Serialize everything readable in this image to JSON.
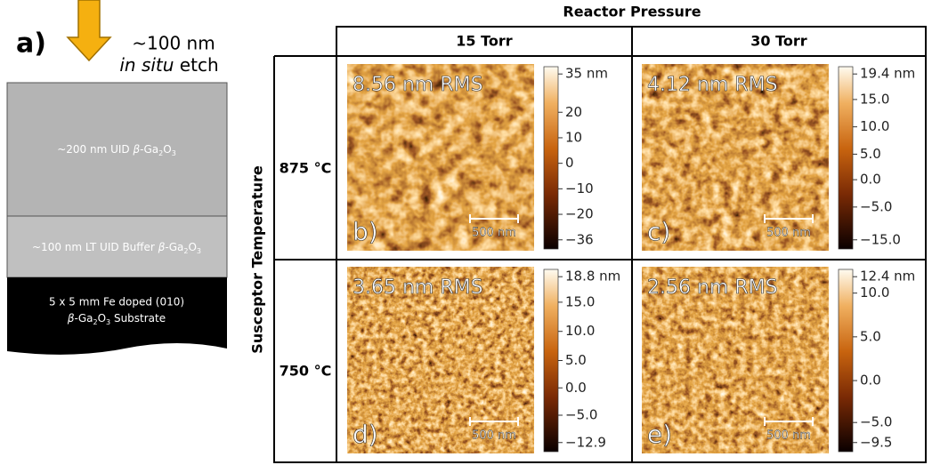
{
  "panel_a": {
    "label": "a)",
    "etch_amount": "~100 nm",
    "etch_italic": "in situ",
    "etch_rest": " etch",
    "layers": [
      {
        "parts": [
          "~200 nm UID ",
          "β",
          "-Ga",
          "2",
          "O",
          "3"
        ]
      },
      {
        "parts": [
          "~100 nm LT UID Buffer ",
          "β",
          "-Ga",
          "2",
          "O",
          "3"
        ]
      }
    ],
    "substrate_line1": "5 x 5 mm Fe doped (010)",
    "substrate_line2": [
      "β",
      "-Ga",
      "2",
      "O",
      "3",
      " Substrate"
    ]
  },
  "grid": {
    "column_header": "Reactor Pressure",
    "columns": [
      "15 Torr",
      "30 Torr"
    ],
    "row_header": "Susceptor Temperature",
    "rows": [
      "875 °C",
      "750 °C"
    ],
    "panels": [
      {
        "label": "b)",
        "rms": "8.56 nm RMS",
        "scale_bar": "500 nm",
        "colorbar": [
          "35 nm",
          "20",
          "10",
          "0",
          "−10",
          "−20",
          "−36"
        ]
      },
      {
        "label": "c)",
        "rms": "4.12 nm RMS",
        "scale_bar": "500 nm",
        "colorbar": [
          "19.4 nm",
          "15.0",
          "10.0",
          "5.0",
          "0.0",
          "−5.0",
          "−15.0"
        ]
      },
      {
        "label": "d)",
        "rms": "3.65 nm RMS",
        "scale_bar": "500 nm",
        "colorbar": [
          "18.8 nm",
          "15.0",
          "10.0",
          "5.0",
          "0.0",
          "−5.0",
          "−12.9"
        ]
      },
      {
        "label": "e)",
        "rms": "2.56 nm RMS",
        "scale_bar": "500 nm",
        "colorbar": [
          "12.4 nm",
          "10.0",
          "5.0",
          "0.0",
          "−5.0",
          "−9.5"
        ]
      }
    ]
  }
}
